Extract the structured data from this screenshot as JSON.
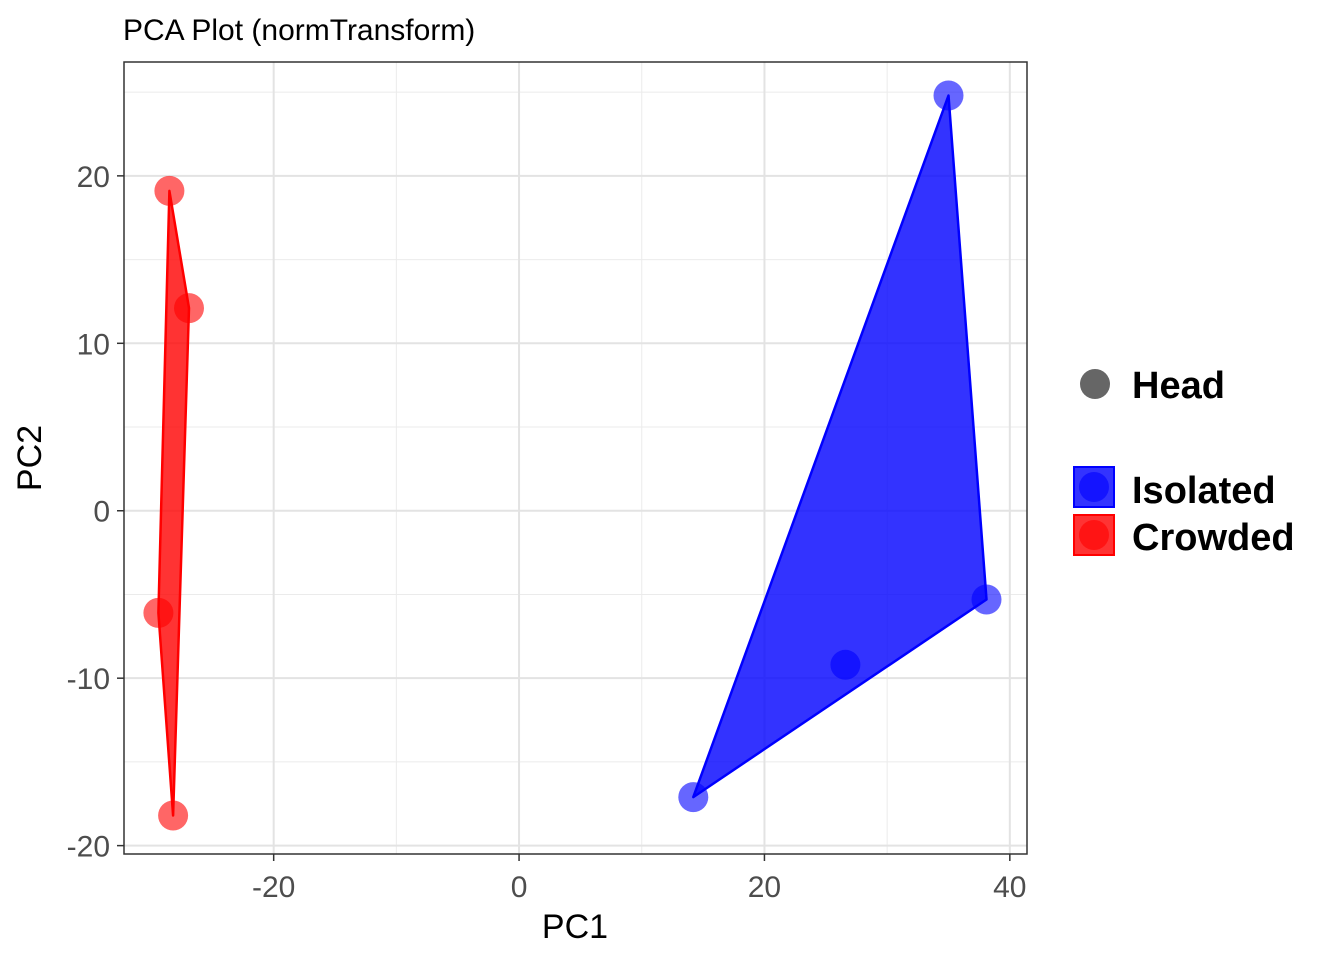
{
  "chart_data": {
    "type": "scatter",
    "title": "PCA Plot (normTransform)",
    "xlabel": "PC1",
    "ylabel": "PC2",
    "xlim": [
      -32.2,
      41.4
    ],
    "ylim": [
      -20.5,
      26.8
    ],
    "x_ticks": [
      -20,
      0,
      20,
      40
    ],
    "x_tick_labels": [
      "-20",
      "0",
      "20",
      "40"
    ],
    "y_ticks": [
      -20,
      -10,
      0,
      10,
      20
    ],
    "y_tick_labels": [
      "-20",
      "-10",
      "0",
      "10",
      "20"
    ],
    "grid": true,
    "legend_position": "right",
    "shape_legend": {
      "label": "Head",
      "color": "#666666"
    },
    "series": [
      {
        "name": "Isolated",
        "color": "#0000ff",
        "points": [
          {
            "x": 35.0,
            "y": 24.8
          },
          {
            "x": 38.1,
            "y": -5.3
          },
          {
            "x": 26.6,
            "y": -9.2
          },
          {
            "x": 14.2,
            "y": -17.1
          }
        ],
        "hull": [
          [
            35.0,
            24.8
          ],
          [
            38.1,
            -5.3
          ],
          [
            14.2,
            -17.1
          ]
        ]
      },
      {
        "name": "Crowded",
        "color": "#ff0000",
        "points": [
          {
            "x": -28.5,
            "y": 19.1
          },
          {
            "x": -26.9,
            "y": 12.1
          },
          {
            "x": -29.4,
            "y": -6.1
          },
          {
            "x": -28.2,
            "y": -18.2
          }
        ],
        "hull": [
          [
            -28.5,
            19.1
          ],
          [
            -26.9,
            12.1
          ],
          [
            -28.2,
            -18.2
          ],
          [
            -29.4,
            -6.1
          ]
        ]
      }
    ]
  }
}
